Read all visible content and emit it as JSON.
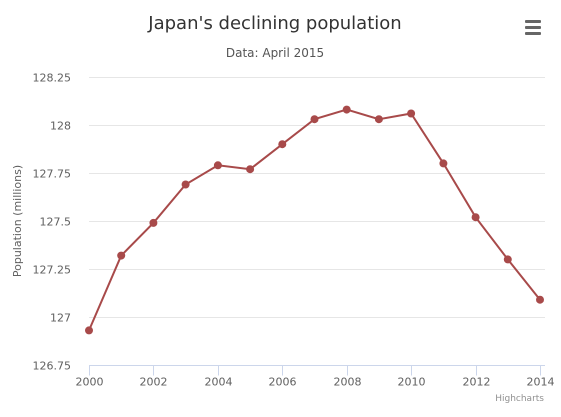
{
  "chart_data": {
    "type": "line",
    "title": "Japan's declining population",
    "subtitle": "Data: April 2015",
    "xlabel": "",
    "ylabel": "Population (millions)",
    "x": [
      2000,
      2001,
      2002,
      2003,
      2004,
      2005,
      2006,
      2007,
      2008,
      2009,
      2010,
      2011,
      2012,
      2013,
      2014
    ],
    "series": [
      {
        "values": [
          126.93,
          127.32,
          127.49,
          127.69,
          127.79,
          127.77,
          127.9,
          128.03,
          128.08,
          128.03,
          128.06,
          127.8,
          127.52,
          127.3,
          127.09
        ],
        "color": "#a84a4a"
      }
    ],
    "xlim": [
      2000,
      2014
    ],
    "ylim": [
      126.75,
      128.25
    ],
    "x_ticks": [
      "2000",
      "2002",
      "2004",
      "2006",
      "2008",
      "2010",
      "2012",
      "2014"
    ],
    "y_ticks": [
      "126.75",
      "127",
      "127.25",
      "127.5",
      "127.75",
      "128",
      "128.25"
    ],
    "grid": "horizontal",
    "legend": "none"
  },
  "menu": {
    "icon": "hamburger-menu-icon"
  },
  "credits": "Highcharts"
}
